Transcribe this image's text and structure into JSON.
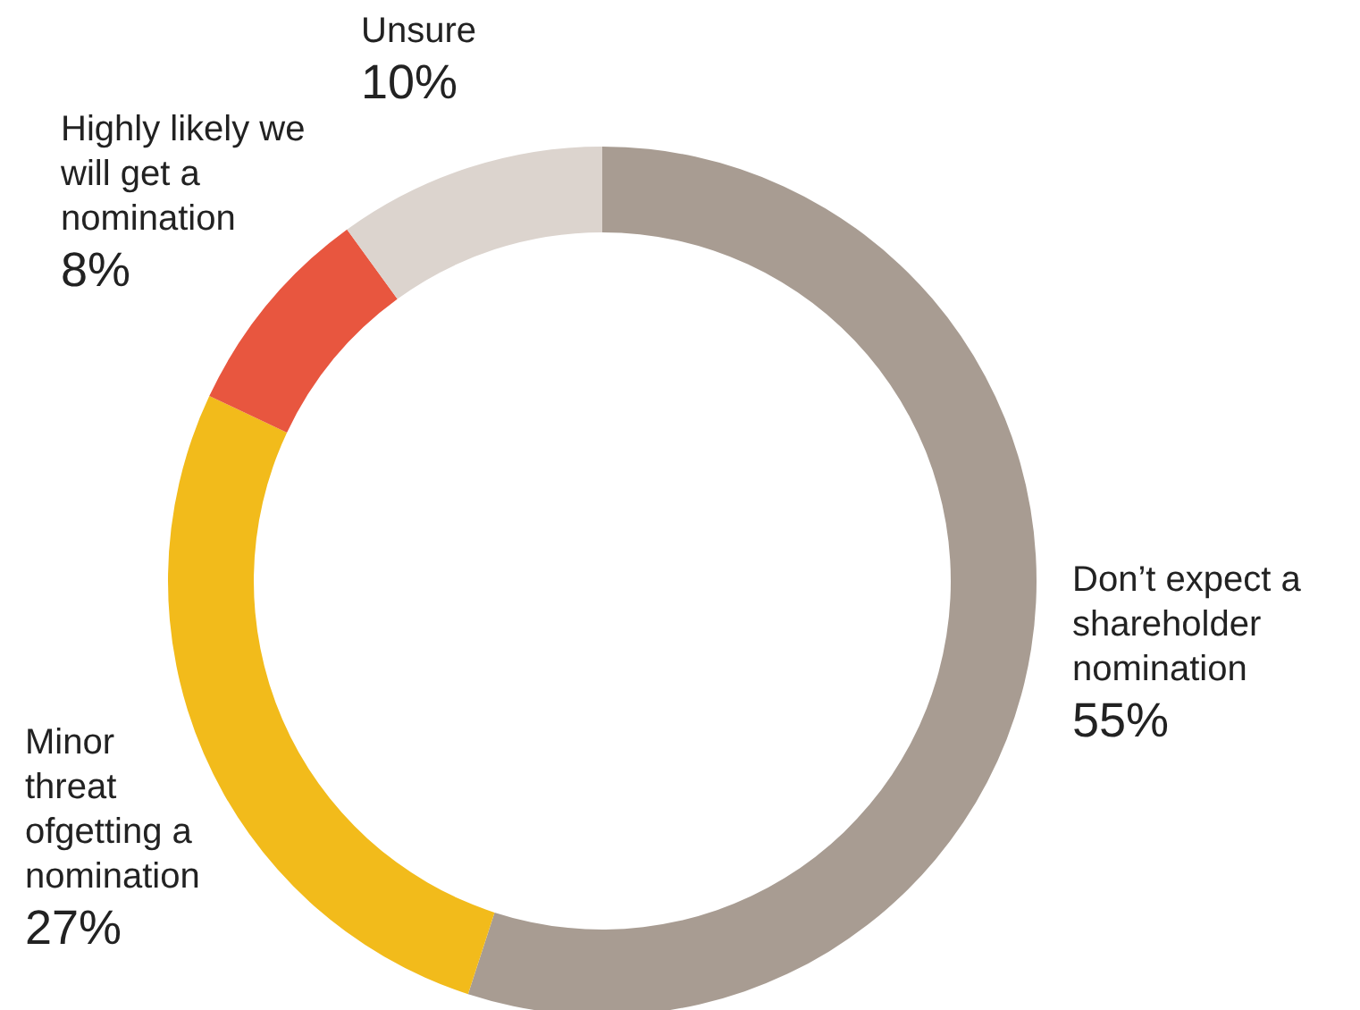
{
  "chart_data": {
    "type": "donut",
    "categories": [
      "Don’t expect a shareholder nomination",
      "Minor threat ofgetting a nomination",
      "Highly likely we will get a nomination",
      "Unsure"
    ],
    "values": [
      55,
      27,
      8,
      10
    ],
    "value_labels": [
      "55%",
      "27%",
      "8%",
      "10%"
    ],
    "colors": [
      "#a89c92",
      "#f2bb1b",
      "#e8563f",
      "#dcd4ce"
    ],
    "legend": false
  }
}
